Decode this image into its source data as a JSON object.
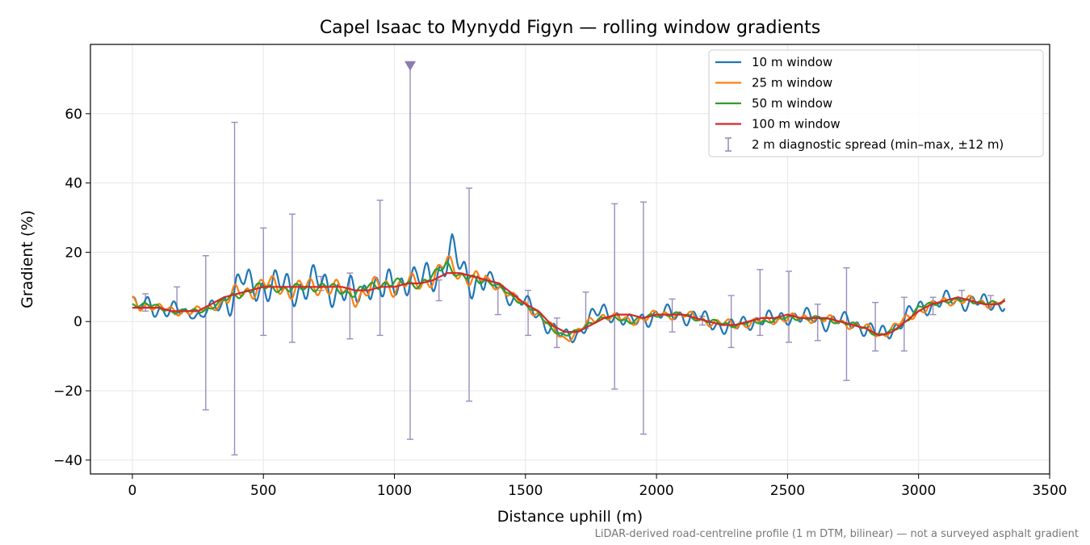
{
  "chart_data": {
    "type": "line",
    "title": "Capel Isaac to Mynydd Figyn — rolling window gradients",
    "xlabel": "Distance uphill (m)",
    "ylabel": "Gradient (%)",
    "footnote": "LiDAR-derived road-centreline profile (1 m DTM, bilinear) — not a surveyed asphalt gradient",
    "xlim": [
      -160,
      3500
    ],
    "ylim": [
      -44,
      80
    ],
    "xticks": [
      0,
      500,
      1000,
      1500,
      2000,
      2500,
      3000,
      3500
    ],
    "xtick_labels": [
      "0",
      "500",
      "1000",
      "1500",
      "2000",
      "2500",
      "3000",
      "3500"
    ],
    "yticks": [
      -40,
      -20,
      0,
      20,
      40,
      60
    ],
    "ytick_labels": [
      "−40",
      "−20",
      "0",
      "20",
      "40",
      "60"
    ],
    "grid": true,
    "legend_position": "top-right",
    "series": [
      {
        "name": "10 m window",
        "color": "#1f77b4",
        "noise": 6,
        "width": 2.2,
        "x": [
          0,
          20,
          40,
          60,
          80,
          100,
          140,
          180,
          210,
          230,
          260,
          280,
          300,
          340,
          380,
          395,
          420,
          450,
          480,
          520,
          560,
          600,
          640,
          700,
          760,
          800,
          840,
          880,
          900,
          930,
          960,
          1000,
          1040,
          1060,
          1080,
          1120,
          1160,
          1200,
          1220,
          1260,
          1300,
          1350,
          1400,
          1450,
          1500,
          1550,
          1600,
          1650,
          1700,
          1750,
          1800,
          1850,
          1900,
          1950,
          2000,
          2050,
          2100,
          2150,
          2200,
          2250,
          2300,
          2350,
          2400,
          2450,
          2500,
          2550,
          2600,
          2650,
          2700,
          2750,
          2800,
          2850,
          2900,
          2950,
          3000,
          3050,
          3100,
          3150,
          3200,
          3250,
          3300,
          3330
        ],
        "y": [
          7,
          2,
          5,
          5,
          4,
          4,
          3,
          3,
          2,
          4,
          1,
          3,
          3,
          5,
          8,
          10,
          12,
          9,
          10,
          11,
          10,
          9,
          10,
          11,
          10,
          9,
          7,
          8,
          13,
          10,
          8,
          11,
          12,
          14,
          11,
          12,
          14,
          18,
          20,
          14,
          12,
          12,
          10,
          7,
          5,
          2,
          -2,
          -5,
          -3,
          1,
          3,
          2,
          -1,
          1,
          2,
          2,
          2,
          1,
          0,
          -1,
          -2,
          0,
          1,
          0,
          2,
          1,
          1,
          0,
          0,
          0,
          -2,
          -4,
          -2,
          1,
          4,
          5,
          6,
          6,
          6,
          5,
          5,
          6
        ]
      },
      {
        "name": "25 m window",
        "color": "#ff7f0e",
        "noise": 3,
        "width": 2.2,
        "x": [
          0,
          30,
          60,
          100,
          150,
          200,
          250,
          300,
          350,
          400,
          450,
          500,
          550,
          600,
          650,
          700,
          750,
          800,
          850,
          900,
          950,
          1000,
          1050,
          1100,
          1150,
          1200,
          1250,
          1300,
          1350,
          1400,
          1450,
          1500,
          1550,
          1600,
          1650,
          1700,
          1750,
          1800,
          1850,
          1900,
          1950,
          2000,
          2100,
          2200,
          2300,
          2400,
          2500,
          2600,
          2700,
          2800,
          2850,
          2900,
          3000,
          3100,
          3200,
          3300,
          3330
        ],
        "y": [
          6,
          4,
          5,
          4,
          3,
          3,
          3,
          4,
          6,
          8,
          9,
          11,
          10,
          9,
          10,
          10,
          10,
          9,
          7,
          9,
          11,
          10,
          11,
          11,
          13,
          17,
          14,
          12,
          12,
          10,
          7,
          5,
          2,
          -2,
          -5,
          -3,
          0,
          2,
          1,
          0,
          1,
          2,
          2,
          0,
          -1,
          0,
          1,
          1,
          0,
          -2,
          -4,
          -2,
          3,
          6,
          6,
          5,
          6
        ]
      },
      {
        "name": "50 m window",
        "color": "#2ca02c",
        "noise": 1.5,
        "width": 2.2,
        "x": [
          0,
          50,
          100,
          150,
          200,
          250,
          300,
          350,
          400,
          450,
          500,
          550,
          600,
          650,
          700,
          750,
          800,
          850,
          900,
          950,
          1000,
          1050,
          1100,
          1150,
          1200,
          1250,
          1300,
          1350,
          1400,
          1450,
          1500,
          1550,
          1600,
          1650,
          1700,
          1750,
          1800,
          1850,
          1900,
          1950,
          2000,
          2100,
          2200,
          2300,
          2400,
          2500,
          2600,
          2700,
          2800,
          2850,
          2900,
          2950,
          3000,
          3100,
          3200,
          3300,
          3330
        ],
        "y": [
          5,
          5,
          4,
          3,
          3,
          3,
          4,
          6,
          8,
          9,
          10,
          10,
          9,
          10,
          10,
          10,
          9,
          8,
          10,
          11,
          11,
          11,
          11,
          13,
          17,
          13,
          12,
          12,
          10,
          7,
          5,
          2,
          -2,
          -4,
          -3,
          0,
          1,
          1,
          0,
          1,
          2,
          2,
          0,
          -1,
          0,
          1,
          1,
          0,
          -2,
          -4,
          -3,
          0,
          4,
          6,
          6,
          5,
          6
        ]
      },
      {
        "name": "100 m window",
        "color": "#d62728",
        "noise": 0,
        "width": 2.2,
        "x": [
          0,
          50,
          100,
          150,
          200,
          250,
          300,
          350,
          400,
          450,
          500,
          550,
          600,
          650,
          700,
          750,
          800,
          850,
          900,
          950,
          1000,
          1050,
          1100,
          1150,
          1200,
          1250,
          1300,
          1350,
          1400,
          1450,
          1500,
          1550,
          1600,
          1650,
          1700,
          1750,
          1800,
          1850,
          1900,
          1950,
          2000,
          2050,
          2100,
          2150,
          2200,
          2250,
          2300,
          2350,
          2400,
          2450,
          2500,
          2550,
          2600,
          2650,
          2700,
          2750,
          2800,
          2850,
          2900,
          2950,
          3000,
          3050,
          3100,
          3150,
          3200,
          3250,
          3300,
          3330
        ],
        "y": [
          4,
          4,
          4,
          3,
          3,
          3,
          5,
          7,
          8,
          9,
          10,
          10,
          10,
          10,
          10,
          10,
          10,
          9,
          9,
          10,
          10,
          11,
          11,
          12,
          14,
          14,
          13,
          12,
          11,
          8,
          5,
          3,
          -1,
          -3,
          -3,
          -1,
          1,
          2,
          2,
          1,
          2,
          2,
          2,
          1,
          0,
          -1,
          -1,
          0,
          1,
          1,
          2,
          1,
          1,
          1,
          0,
          -1,
          -2,
          -4,
          -3,
          0,
          3,
          5,
          6,
          7,
          6,
          5,
          5,
          6
        ]
      }
    ],
    "errorbars": {
      "name": "2 m diagnostic spread (min–max, ±12 m)",
      "color": "#9b8dbd",
      "bars": [
        {
          "x": 50,
          "low": 3,
          "high": 8
        },
        {
          "x": 170,
          "low": 2,
          "high": 10
        },
        {
          "x": 280,
          "low": -25.5,
          "high": 19
        },
        {
          "x": 390,
          "low": -38.5,
          "high": 57.5
        },
        {
          "x": 500,
          "low": -4,
          "high": 27
        },
        {
          "x": 610,
          "low": -6,
          "high": 31
        },
        {
          "x": 720,
          "low": 9,
          "high": 13
        },
        {
          "x": 830,
          "low": -5,
          "high": 14
        },
        {
          "x": 945,
          "low": -4,
          "high": 35
        },
        {
          "x": 1060,
          "low": -34,
          "high": 74
        },
        {
          "x": 1170,
          "low": 6,
          "high": 12
        },
        {
          "x": 1285,
          "low": -23,
          "high": 38.5
        },
        {
          "x": 1395,
          "low": 2,
          "high": 10
        },
        {
          "x": 1510,
          "low": -4,
          "high": 9
        },
        {
          "x": 1620,
          "low": -7.5,
          "high": 1
        },
        {
          "x": 1730,
          "low": -2,
          "high": 8.5
        },
        {
          "x": 1840,
          "low": -19.5,
          "high": 34
        },
        {
          "x": 1950,
          "low": -32.5,
          "high": 34.5
        },
        {
          "x": 2060,
          "low": -3,
          "high": 6.5
        },
        {
          "x": 2175,
          "low": -1,
          "high": 1.5
        },
        {
          "x": 2285,
          "low": -7.5,
          "high": 7.5
        },
        {
          "x": 2395,
          "low": -4,
          "high": 15
        },
        {
          "x": 2505,
          "low": -6,
          "high": 14.5
        },
        {
          "x": 2615,
          "low": -5.5,
          "high": 5
        },
        {
          "x": 2725,
          "low": -17,
          "high": 15.5
        },
        {
          "x": 2835,
          "low": -8.5,
          "high": 5.5
        },
        {
          "x": 2945,
          "low": -8.5,
          "high": 7
        },
        {
          "x": 3055,
          "low": 2,
          "high": 7
        },
        {
          "x": 3165,
          "low": 6,
          "high": 9
        },
        {
          "x": 3275,
          "low": 4,
          "high": 7.5
        }
      ],
      "clipped_marker": {
        "x": 1060,
        "y": 74
      }
    }
  }
}
